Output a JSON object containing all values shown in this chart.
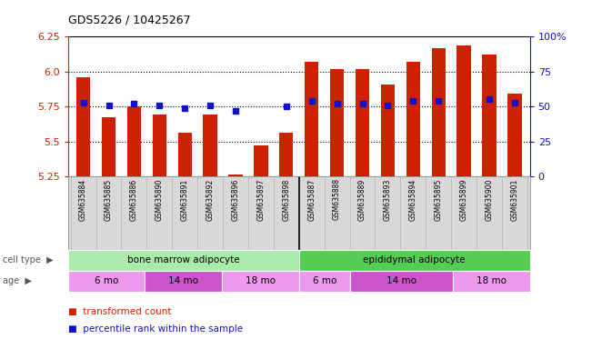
{
  "title": "GDS5226 / 10425267",
  "samples": [
    "GSM635884",
    "GSM635885",
    "GSM635886",
    "GSM635890",
    "GSM635891",
    "GSM635892",
    "GSM635896",
    "GSM635897",
    "GSM635898",
    "GSM635887",
    "GSM635888",
    "GSM635889",
    "GSM635893",
    "GSM635894",
    "GSM635895",
    "GSM635899",
    "GSM635900",
    "GSM635901"
  ],
  "red_values": [
    5.96,
    5.67,
    5.75,
    5.69,
    5.56,
    5.69,
    5.26,
    5.47,
    5.56,
    6.07,
    6.02,
    6.02,
    5.91,
    6.07,
    6.17,
    6.19,
    6.12,
    5.84
  ],
  "blue_values": [
    5.78,
    5.76,
    5.77,
    5.76,
    5.74,
    5.76,
    5.72,
    null,
    5.75,
    5.79,
    5.77,
    5.77,
    5.76,
    5.79,
    5.79,
    null,
    5.8,
    5.78
  ],
  "ylim": [
    5.25,
    6.25
  ],
  "yticks_left": [
    5.25,
    5.5,
    5.75,
    6.0,
    6.25
  ],
  "yticks_right": [
    0,
    25,
    50,
    75,
    100
  ],
  "ytick_labels_right": [
    "0",
    "25",
    "50",
    "75",
    "100%"
  ],
  "bar_color": "#cc2200",
  "dot_color": "#1111cc",
  "cell_type_groups": [
    {
      "label": "bone marrow adipocyte",
      "start": 0,
      "end": 9,
      "color": "#aaeaaa"
    },
    {
      "label": "epididymal adipocyte",
      "start": 9,
      "end": 18,
      "color": "#55cc55"
    }
  ],
  "age_groups": [
    {
      "label": "6 mo",
      "start": 0,
      "end": 3,
      "color": "#ee99ee"
    },
    {
      "label": "14 mo",
      "start": 3,
      "end": 6,
      "color": "#cc55cc"
    },
    {
      "label": "18 mo",
      "start": 6,
      "end": 9,
      "color": "#ee99ee"
    },
    {
      "label": "6 mo",
      "start": 9,
      "end": 11,
      "color": "#ee99ee"
    },
    {
      "label": "14 mo",
      "start": 11,
      "end": 15,
      "color": "#cc55cc"
    },
    {
      "label": "18 mo",
      "start": 15,
      "end": 18,
      "color": "#ee99ee"
    }
  ],
  "bg_color": "#ffffff"
}
